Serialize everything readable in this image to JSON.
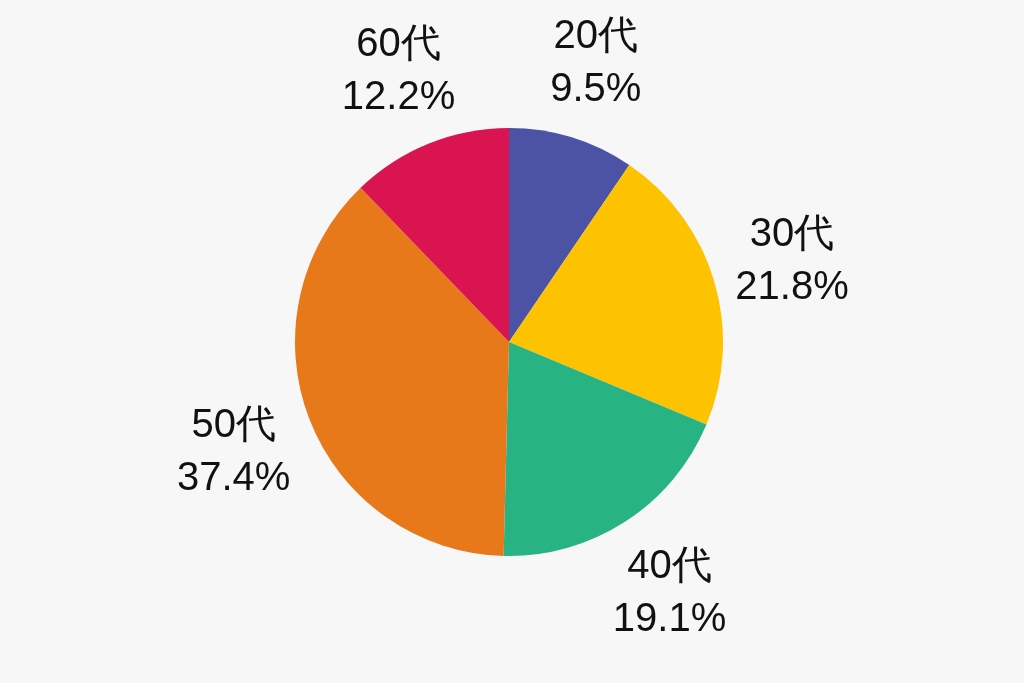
{
  "chart_data": {
    "type": "pie",
    "categories": [
      "20代",
      "30代",
      "40代",
      "50代",
      "60代"
    ],
    "values": [
      9.5,
      21.8,
      19.1,
      37.4,
      12.2
    ],
    "colors": [
      "#4c53a5",
      "#fec300",
      "#28b383",
      "#e8791a",
      "#da1451"
    ],
    "value_labels": [
      "9.5%",
      "21.8%",
      "19.1%",
      "37.4%",
      "12.2%"
    ]
  }
}
